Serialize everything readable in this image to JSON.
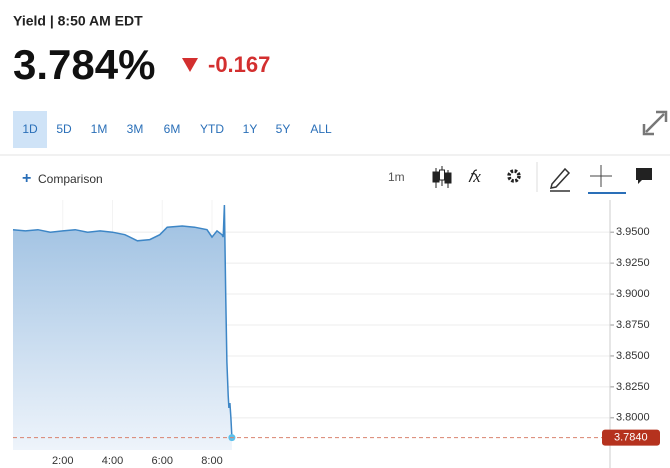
{
  "header": {
    "title": "Yield | 8:50 AM EDT",
    "price": "3.784%",
    "change": "-0.167"
  },
  "tabs": [
    "1D",
    "5D",
    "1M",
    "3M",
    "6M",
    "YTD",
    "1Y",
    "5Y",
    "ALL"
  ],
  "toolbar": {
    "comparison": "Comparison",
    "interval": "1m"
  },
  "chart_data": {
    "type": "area",
    "x": [
      0,
      0.5,
      1,
      1.5,
      2,
      2.5,
      3,
      3.5,
      4,
      4.5,
      5,
      5.5,
      5.9,
      6.2,
      6.8,
      7.3,
      7.8,
      8.0,
      8.2,
      8.4,
      8.45,
      8.5,
      8.55,
      8.6,
      8.65,
      8.68,
      8.72,
      8.76,
      8.8
    ],
    "values": [
      3.952,
      3.951,
      3.952,
      3.95,
      3.951,
      3.952,
      3.95,
      3.951,
      3.95,
      3.948,
      3.943,
      3.944,
      3.948,
      3.954,
      3.955,
      3.954,
      3.952,
      3.946,
      3.951,
      3.948,
      3.946,
      3.972,
      3.9,
      3.845,
      3.818,
      3.808,
      3.812,
      3.8,
      3.784
    ],
    "color": "#3d86c6",
    "xlim": [
      0,
      24
    ],
    "xticks": [
      {
        "value": 2,
        "label": "2:00"
      },
      {
        "value": 4,
        "label": "4:00"
      },
      {
        "value": 6,
        "label": "6:00"
      },
      {
        "value": 8,
        "label": "8:00"
      }
    ],
    "ylim": [
      3.774,
      3.976
    ],
    "yticks": [
      {
        "value": 3.8,
        "label": "3.8000"
      },
      {
        "value": 3.825,
        "label": "3.8250"
      },
      {
        "value": 3.85,
        "label": "3.8500"
      },
      {
        "value": 3.875,
        "label": "3.8750"
      },
      {
        "value": 3.9,
        "label": "3.9000"
      },
      {
        "value": 3.925,
        "label": "3.9250"
      },
      {
        "value": 3.95,
        "label": "3.9500"
      }
    ],
    "price_line": {
      "value": 3.784,
      "label": "3.7840"
    },
    "grid": true
  }
}
